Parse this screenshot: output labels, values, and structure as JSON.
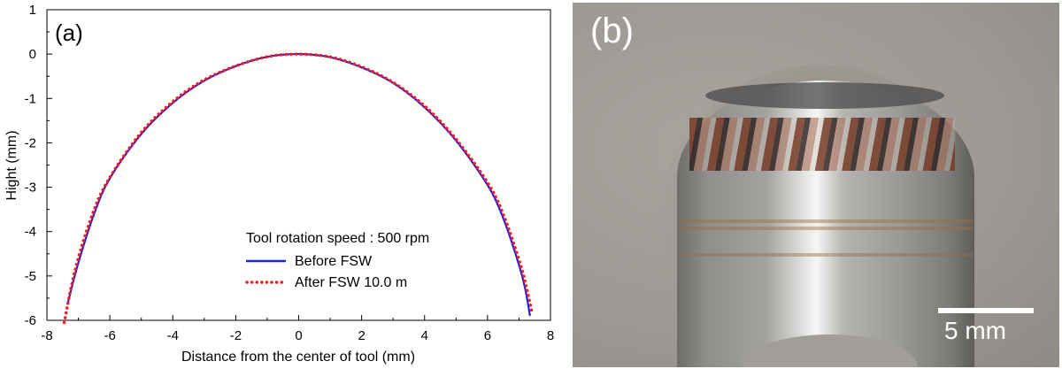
{
  "chart_data": {
    "type": "line",
    "panel_label": "(a)",
    "xlabel": "Distance from the center of tool (mm)",
    "ylabel": "Hight (mm)",
    "xlim": [
      -8,
      8
    ],
    "ylim": [
      -6,
      1
    ],
    "xticks": [
      -8,
      -6,
      -4,
      -2,
      0,
      2,
      4,
      6,
      8
    ],
    "yticks": [
      1,
      0,
      -1,
      -2,
      -3,
      -4,
      -5,
      -6
    ],
    "grid": false,
    "legend": {
      "title": "Tool rotation speed : 500 rpm",
      "placement": "bottom-right"
    },
    "series": [
      {
        "name": "Before FSW",
        "color": "#1f1fe0",
        "style": "solid",
        "points": [
          [
            -7.35,
            -5.65
          ],
          [
            -7.0,
            -4.7
          ],
          [
            -6.5,
            -3.6
          ],
          [
            -6.0,
            -2.8
          ],
          [
            -5.0,
            -1.8
          ],
          [
            -4.0,
            -1.1
          ],
          [
            -3.0,
            -0.6
          ],
          [
            -2.0,
            -0.27
          ],
          [
            -1.0,
            -0.06
          ],
          [
            0,
            0
          ],
          [
            1.0,
            -0.07
          ],
          [
            2.0,
            -0.3
          ],
          [
            3.0,
            -0.65
          ],
          [
            4.0,
            -1.2
          ],
          [
            5.0,
            -1.95
          ],
          [
            6.0,
            -2.95
          ],
          [
            6.5,
            -3.7
          ],
          [
            7.0,
            -4.75
          ],
          [
            7.2,
            -5.3
          ],
          [
            7.35,
            -5.9
          ]
        ]
      },
      {
        "name": "After FSW 10.0 m",
        "color": "#ff1a1a",
        "style": "dotted",
        "points": [
          [
            -7.45,
            -6.05
          ],
          [
            -7.1,
            -4.85
          ],
          [
            -6.6,
            -3.7
          ],
          [
            -6.1,
            -2.9
          ],
          [
            -5.1,
            -1.85
          ],
          [
            -4.1,
            -1.13
          ],
          [
            -3.1,
            -0.62
          ],
          [
            -2.05,
            -0.28
          ],
          [
            -1.0,
            -0.06
          ],
          [
            0,
            0
          ],
          [
            1.05,
            -0.07
          ],
          [
            2.05,
            -0.3
          ],
          [
            3.05,
            -0.66
          ],
          [
            4.05,
            -1.2
          ],
          [
            5.05,
            -1.96
          ],
          [
            6.05,
            -2.95
          ],
          [
            6.55,
            -3.7
          ],
          [
            7.05,
            -4.75
          ],
          [
            7.25,
            -5.3
          ],
          [
            7.42,
            -5.85
          ]
        ]
      }
    ]
  },
  "photo": {
    "panel_label": "(b)",
    "scale_bar": "5 mm"
  }
}
